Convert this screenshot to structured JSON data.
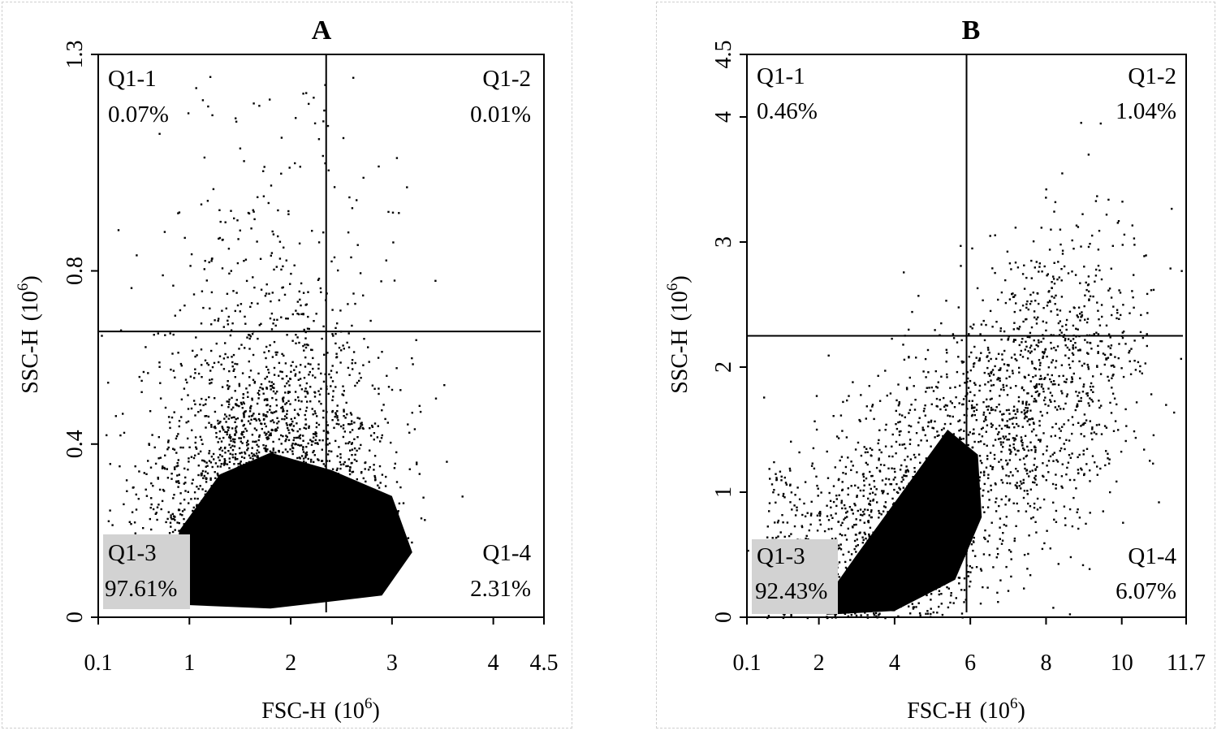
{
  "chart_data": [
    {
      "type": "scatter",
      "panel": "A",
      "title": "A",
      "xlabel_main": "FSC-H",
      "xlabel_base": "(10",
      "xlabel_exp": "6",
      "xlabel_close": ")",
      "ylabel_main": "SSC-H",
      "ylabel_base": "(10",
      "ylabel_exp": "6",
      "ylabel_close": ")",
      "xlim": [
        0.1,
        4.5
      ],
      "ylim": [
        0,
        1.3
      ],
      "x_ticks": [
        {
          "value": 0.1,
          "label": "0.1"
        },
        {
          "value": 1,
          "label": "1"
        },
        {
          "value": 2,
          "label": "2"
        },
        {
          "value": 3,
          "label": "3"
        },
        {
          "value": 4,
          "label": "4"
        },
        {
          "value": 4.5,
          "label": "4.5"
        }
      ],
      "y_ticks": [
        {
          "value": 0,
          "label": "0"
        },
        {
          "value": 0.4,
          "label": "0.4"
        },
        {
          "value": 0.8,
          "label": "0.8"
        },
        {
          "value": 1.3,
          "label": "1.3"
        }
      ],
      "gate_x": 2.35,
      "gate_y": 0.66,
      "quadrants": [
        {
          "name": "Q1-1",
          "percent": "0.07%",
          "position": "top-left"
        },
        {
          "name": "Q1-2",
          "percent": "0.01%",
          "position": "top-right"
        },
        {
          "name": "Q1-3",
          "percent": "97.61%",
          "position": "bottom-left"
        },
        {
          "name": "Q1-4",
          "percent": "2.31%",
          "position": "bottom-right"
        }
      ],
      "population": {
        "center_x": 1.8,
        "center_y": 0.17,
        "dense_core": [
          [
            0.8,
            0.03
          ],
          [
            1.8,
            0.02
          ],
          [
            2.9,
            0.05
          ],
          [
            3.2,
            0.15
          ],
          [
            3.0,
            0.28
          ],
          [
            2.4,
            0.34
          ],
          [
            1.8,
            0.38
          ],
          [
            1.3,
            0.33
          ],
          [
            0.9,
            0.2
          ]
        ]
      }
    },
    {
      "type": "scatter",
      "panel": "B",
      "title": "B",
      "xlabel_main": "FSC-H",
      "xlabel_base": "(10",
      "xlabel_exp": "6",
      "xlabel_close": ")",
      "ylabel_main": "SSC-H",
      "ylabel_base": "(10",
      "ylabel_exp": "6",
      "ylabel_close": ")",
      "xlim": [
        0.1,
        11.7
      ],
      "ylim": [
        0,
        4.5
      ],
      "x_ticks": [
        {
          "value": 0.1,
          "label": "0.1"
        },
        {
          "value": 2,
          "label": "2"
        },
        {
          "value": 4,
          "label": "4"
        },
        {
          "value": 6,
          "label": "6"
        },
        {
          "value": 8,
          "label": "8"
        },
        {
          "value": 10,
          "label": "10"
        },
        {
          "value": 11.7,
          "label": "11.7"
        }
      ],
      "y_ticks": [
        {
          "value": 0,
          "label": "0"
        },
        {
          "value": 1,
          "label": "1"
        },
        {
          "value": 2,
          "label": "2"
        },
        {
          "value": 3,
          "label": "3"
        },
        {
          "value": 4,
          "label": "4"
        },
        {
          "value": 4.5,
          "label": "4.5"
        }
      ],
      "gate_x": 5.9,
      "gate_y": 2.25,
      "quadrants": [
        {
          "name": "Q1-1",
          "percent": "0.46%",
          "position": "top-left"
        },
        {
          "name": "Q1-2",
          "percent": "1.04%",
          "position": "top-right"
        },
        {
          "name": "Q1-3",
          "percent": "92.43%",
          "position": "bottom-left"
        },
        {
          "name": "Q1-4",
          "percent": "6.07%",
          "position": "bottom-right"
        }
      ],
      "population": {
        "center_x": 4.5,
        "center_y": 0.6,
        "dense_core": [
          [
            2.2,
            0.02
          ],
          [
            4.0,
            0.05
          ],
          [
            5.6,
            0.3
          ],
          [
            6.3,
            0.8
          ],
          [
            6.2,
            1.3
          ],
          [
            5.4,
            1.5
          ],
          [
            4.2,
            1.0
          ],
          [
            3.0,
            0.5
          ],
          [
            2.3,
            0.2
          ]
        ]
      }
    }
  ]
}
